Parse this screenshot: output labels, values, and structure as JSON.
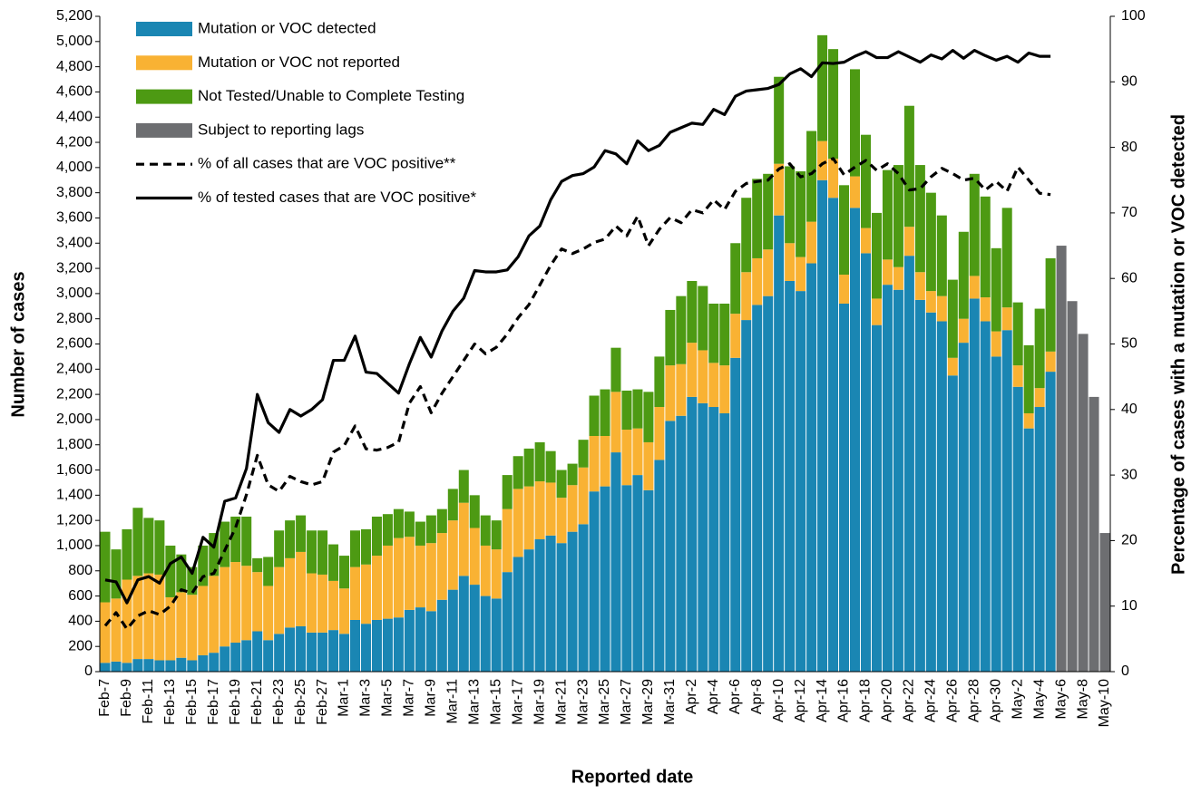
{
  "chart_data": {
    "type": "bar",
    "xlabel": "Reported date",
    "ylabel": "Number of cases",
    "y2label": "Percentage of cases with a mutation or VOC detected",
    "legend": "top-left",
    "categories": [
      "Feb-7",
      null,
      "Feb-9",
      null,
      "Feb-11",
      null,
      "Feb-13",
      null,
      "Feb-15",
      null,
      "Feb-17",
      null,
      "Feb-19",
      null,
      "Feb-21",
      null,
      "Feb-23",
      null,
      "Feb-25",
      null,
      "Feb-27",
      null,
      "Mar-1",
      null,
      "Mar-3",
      null,
      "Mar-5",
      null,
      "Mar-7",
      null,
      "Mar-9",
      null,
      "Mar-11",
      null,
      "Mar-13",
      null,
      "Mar-15",
      null,
      "Mar-17",
      null,
      "Mar-19",
      null,
      "Mar-21",
      null,
      "Mar-23",
      null,
      "Mar-25",
      null,
      "Mar-27",
      null,
      "Mar-29",
      null,
      "Mar-31",
      null,
      "Apr-2",
      null,
      "Apr-4",
      null,
      "Apr-6",
      null,
      "Apr-8",
      null,
      "Apr-10",
      null,
      "Apr-12",
      null,
      "Apr-14",
      null,
      "Apr-16",
      null,
      "Apr-18",
      null,
      "Apr-20",
      null,
      "Apr-22",
      null,
      "Apr-24",
      null,
      "Apr-26",
      null,
      "Apr-28",
      null,
      "Apr-30",
      null,
      "May-2",
      null,
      "May-4",
      null,
      "May-6",
      null,
      "May-8",
      null,
      "May-10"
    ],
    "ylim": [
      0,
      5200
    ],
    "yticks": [
      0,
      200,
      400,
      600,
      800,
      {
        "value": 1000,
        "label": "1,000"
      },
      {
        "value": 1200,
        "label": "1,200"
      },
      {
        "value": 1400,
        "label": "1,400"
      },
      {
        "value": 1600,
        "label": "1,600"
      },
      {
        "value": 1800,
        "label": "1,800"
      },
      {
        "value": 2000,
        "label": "2,000"
      },
      {
        "value": 2200,
        "label": "2,200"
      },
      {
        "value": 2400,
        "label": "2,400"
      },
      {
        "value": 2600,
        "label": "2,600"
      },
      {
        "value": 2800,
        "label": "2,800"
      },
      {
        "value": 3000,
        "label": "3,000"
      },
      {
        "value": 3200,
        "label": "3,200"
      },
      {
        "value": 3400,
        "label": "3,400"
      },
      {
        "value": 3600,
        "label": "3,600"
      },
      {
        "value": 3800,
        "label": "3,800"
      },
      {
        "value": 4000,
        "label": "4,000"
      },
      {
        "value": 4200,
        "label": "4,200"
      },
      {
        "value": 4400,
        "label": "4,400"
      },
      {
        "value": 4600,
        "label": "4,600"
      },
      {
        "value": 4800,
        "label": "4,800"
      },
      {
        "value": 5000,
        "label": "5,000"
      },
      {
        "value": 5200,
        "label": "5,200"
      }
    ],
    "y2lim": [
      0,
      100
    ],
    "y2ticks": [
      0,
      10,
      20,
      30,
      40,
      50,
      60,
      70,
      80,
      90,
      100
    ],
    "series": [
      {
        "name": "Mutation or VOC detected",
        "type": "bar",
        "color": "#1a86b3",
        "values": [
          70,
          80,
          70,
          100,
          100,
          90,
          90,
          110,
          90,
          130,
          150,
          200,
          230,
          250,
          320,
          250,
          300,
          350,
          360,
          310,
          310,
          330,
          300,
          410,
          380,
          410,
          420,
          430,
          490,
          510,
          480,
          570,
          650,
          760,
          690,
          600,
          580,
          790,
          910,
          970,
          1050,
          1080,
          1020,
          1110,
          1170,
          1430,
          1470,
          1740,
          1480,
          1560,
          1440,
          1680,
          1990,
          2030,
          2180,
          2130,
          2100,
          2050,
          2490,
          2790,
          2910,
          2980,
          3620,
          3100,
          3020,
          3240,
          3900,
          3760,
          2920,
          3680,
          3320,
          2750,
          3070,
          3030,
          3300,
          2950,
          2850,
          2780,
          2350,
          2610,
          2960,
          2780,
          2500,
          2710,
          2260,
          1930,
          2100,
          2380,
          null,
          null,
          null,
          null,
          null
        ]
      },
      {
        "name": "Mutation or VOC not reported",
        "type": "bar",
        "color": "#f9b233",
        "values": [
          480,
          500,
          660,
          660,
          680,
          680,
          500,
          520,
          520,
          550,
          610,
          630,
          640,
          590,
          470,
          430,
          530,
          550,
          590,
          470,
          460,
          390,
          360,
          420,
          470,
          510,
          580,
          630,
          580,
          490,
          540,
          530,
          550,
          580,
          450,
          400,
          390,
          500,
          540,
          500,
          460,
          420,
          360,
          370,
          450,
          440,
          400,
          480,
          440,
          370,
          380,
          420,
          440,
          410,
          430,
          420,
          350,
          380,
          350,
          380,
          370,
          370,
          410,
          300,
          270,
          330,
          310,
          310,
          230,
          250,
          200,
          210,
          200,
          180,
          230,
          220,
          170,
          200,
          140,
          190,
          180,
          190,
          200,
          180,
          170,
          120,
          150,
          160,
          null,
          null,
          null,
          null,
          null
        ]
      },
      {
        "name": "Not Tested/Unable to Complete Testing",
        "type": "bar",
        "color": "#4d9a13",
        "values": [
          560,
          390,
          400,
          540,
          440,
          430,
          410,
          300,
          220,
          320,
          340,
          360,
          360,
          390,
          110,
          230,
          290,
          300,
          290,
          340,
          350,
          290,
          260,
          290,
          280,
          310,
          250,
          230,
          200,
          190,
          220,
          190,
          250,
          260,
          260,
          240,
          230,
          270,
          260,
          300,
          310,
          250,
          220,
          170,
          220,
          320,
          370,
          350,
          310,
          310,
          400,
          400,
          440,
          540,
          490,
          510,
          470,
          490,
          560,
          590,
          630,
          600,
          690,
          610,
          680,
          720,
          840,
          870,
          710,
          850,
          740,
          680,
          710,
          810,
          960,
          850,
          780,
          640,
          620,
          690,
          810,
          800,
          660,
          790,
          500,
          540,
          630,
          740,
          null,
          null,
          null,
          null,
          null
        ]
      },
      {
        "name": "Subject to reporting lags",
        "type": "bar",
        "color": "#6d6e71",
        "values": [
          null,
          null,
          null,
          null,
          null,
          null,
          null,
          null,
          null,
          null,
          null,
          null,
          null,
          null,
          null,
          null,
          null,
          null,
          null,
          null,
          null,
          null,
          null,
          null,
          null,
          null,
          null,
          null,
          null,
          null,
          null,
          null,
          null,
          null,
          null,
          null,
          null,
          null,
          null,
          null,
          null,
          null,
          null,
          null,
          null,
          null,
          null,
          null,
          null,
          null,
          null,
          null,
          null,
          null,
          null,
          null,
          null,
          null,
          null,
          null,
          null,
          null,
          null,
          null,
          null,
          null,
          null,
          null,
          null,
          null,
          null,
          null,
          null,
          null,
          null,
          null,
          null,
          null,
          null,
          null,
          null,
          null,
          null,
          null,
          null,
          null,
          null,
          null,
          3380,
          2940,
          2680,
          2180,
          1100
        ]
      },
      {
        "name": "% of all cases that are VOC positive**",
        "type": "line",
        "axis": "y2",
        "color": "#000000",
        "dashed": true,
        "values": [
          7,
          9,
          6.5,
          8.5,
          9.3,
          8.7,
          10,
          12.5,
          12,
          14.5,
          15,
          18.5,
          22,
          27,
          33,
          28.5,
          27.5,
          29.8,
          29,
          28.5,
          29,
          33.5,
          34.5,
          37.5,
          34,
          33.8,
          34.2,
          35,
          41,
          43.5,
          39.5,
          42.5,
          45,
          47.5,
          50,
          48.5,
          49.5,
          51.5,
          54,
          56,
          59,
          62,
          64.5,
          63.8,
          64.5,
          65.5,
          66,
          68,
          66.5,
          69.5,
          65,
          67.5,
          69.3,
          68.5,
          70.5,
          70,
          72,
          70.5,
          73.3,
          74.5,
          74.8,
          75,
          76.7,
          77.5,
          75.5,
          76,
          77.5,
          78.3,
          75.8,
          77,
          78,
          76.5,
          77.5,
          76,
          73.5,
          73.7,
          75.5,
          76.8,
          76,
          75,
          75.3,
          73.5,
          74.8,
          73.3,
          77,
          75,
          73,
          72.8,
          null,
          null,
          null,
          null,
          null
        ]
      },
      {
        "name": "% of tested cases that are VOC positive*",
        "type": "line",
        "axis": "y2",
        "color": "#000000",
        "dashed": false,
        "values": [
          14,
          13.7,
          10.5,
          14,
          14.5,
          13.5,
          16.5,
          17.5,
          15,
          20.5,
          19,
          26,
          26.5,
          31,
          42.3,
          38,
          36.5,
          40,
          39,
          40,
          41.5,
          47.5,
          47.5,
          51.2,
          45.7,
          45.5,
          44,
          42.5,
          47,
          51,
          48,
          52,
          55,
          57,
          61.2,
          61,
          61,
          61.3,
          63.3,
          66.5,
          68,
          72,
          74.8,
          75.7,
          76,
          77,
          79.5,
          79,
          77.5,
          81,
          79.5,
          80.3,
          82.3,
          83,
          83.7,
          83.5,
          85.8,
          85,
          87.8,
          88.6,
          88.8,
          89,
          89.6,
          91.2,
          92,
          90.8,
          92.9,
          92.8,
          93,
          93.9,
          94.6,
          93.7,
          93.7,
          94.6,
          93.8,
          93,
          94.1,
          93.5,
          94.8,
          93.6,
          94.8,
          94,
          93.3,
          93.9,
          93,
          94.4,
          93.9,
          93.9,
          null,
          null,
          null,
          null,
          null
        ]
      }
    ]
  }
}
